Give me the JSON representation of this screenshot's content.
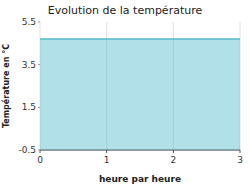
{
  "chart_data": {
    "type": "area",
    "title": "Evolution de la température",
    "x_label": "heure par heure",
    "y_label": "Température en °C",
    "x": [
      0,
      3
    ],
    "values": [
      4.7,
      4.7
    ],
    "baseline": -0.5,
    "color": "#55bbcc",
    "xlim": [
      0,
      3
    ],
    "ylim": [
      -0.5,
      5.5
    ],
    "xticks": [
      0,
      1,
      2,
      3
    ],
    "yticks": [
      -0.5,
      1.5,
      3.5,
      5.5
    ],
    "grid": true
  }
}
